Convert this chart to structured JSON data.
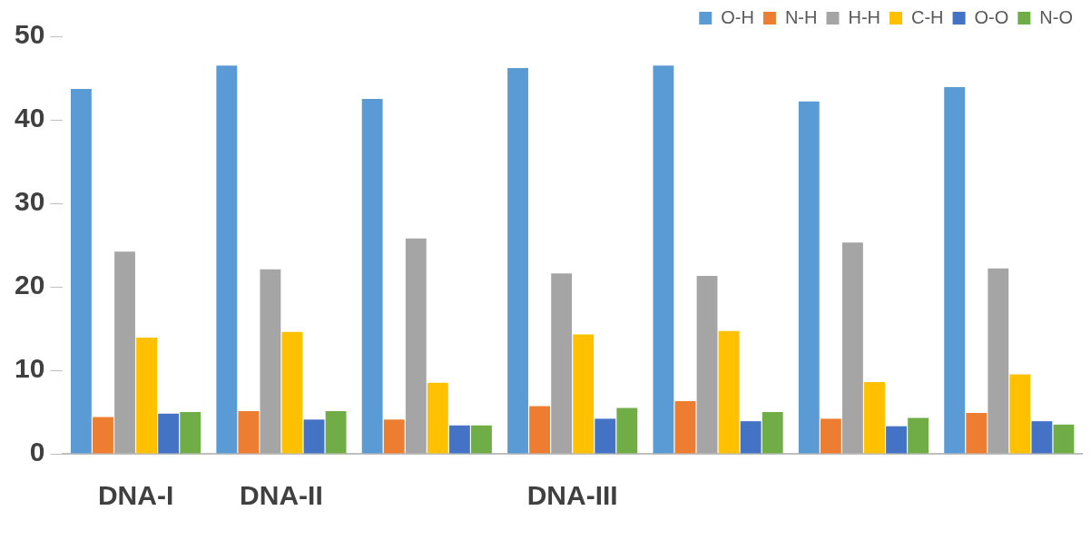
{
  "chart_data": {
    "type": "bar",
    "categories": [
      "DNA-I",
      "DNA-II",
      null,
      "DNA-III",
      null,
      null,
      null
    ],
    "series": [
      {
        "name": "O-H",
        "color": "#5b9bd5",
        "values": [
          43.7,
          46.5,
          42.5,
          46.2,
          46.5,
          42.2,
          43.9
        ]
      },
      {
        "name": "N-H",
        "color": "#ed7d31",
        "values": [
          4.4,
          5.1,
          4.1,
          5.7,
          6.3,
          4.2,
          4.9
        ]
      },
      {
        "name": "H-H",
        "color": "#a5a5a5",
        "values": [
          24.2,
          22.1,
          25.8,
          21.6,
          21.3,
          25.3,
          22.2
        ]
      },
      {
        "name": "C-H",
        "color": "#ffc000",
        "values": [
          13.9,
          14.6,
          8.5,
          14.3,
          14.7,
          8.6,
          9.5
        ]
      },
      {
        "name": "O-O",
        "color": "#4472c4",
        "values": [
          4.8,
          4.1,
          3.4,
          4.2,
          3.9,
          3.3,
          3.9
        ]
      },
      {
        "name": "N-O",
        "color": "#70ad47",
        "values": [
          5.0,
          5.1,
          3.4,
          5.5,
          5.0,
          4.3,
          3.5
        ]
      }
    ],
    "ylim": [
      0,
      50
    ],
    "yticks": [
      0,
      10,
      20,
      30,
      40,
      50
    ],
    "grid": false,
    "legend": "top right"
  }
}
